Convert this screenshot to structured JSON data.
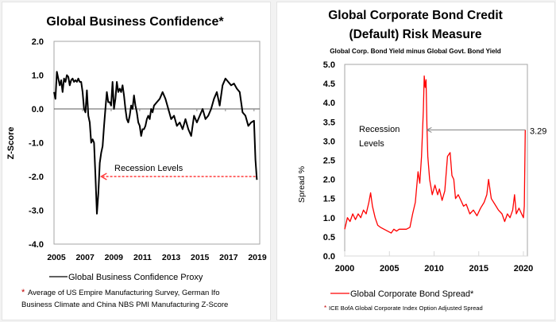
{
  "chart_data": [
    {
      "type": "line",
      "title": "Global Business Confidence*",
      "xlabel": "",
      "ylabel": "Z-Score",
      "xlim": [
        2005,
        2019.4
      ],
      "ylim": [
        -4.0,
        2.0
      ],
      "x_ticks": [
        "2005",
        "2007",
        "2009",
        "2011",
        "2013",
        "2015",
        "2017",
        "2019"
      ],
      "y_ticks": [
        "2.0",
        "1.0",
        "0.0",
        "-1.0",
        "-2.0",
        "-3.0",
        "-4.0"
      ],
      "legend": [
        "Global Business Confidence Proxy"
      ],
      "legend_position": "bottom",
      "line_color": "#000000",
      "annotation": {
        "text": "Recession Levels",
        "arrow_from_x": 2019.1,
        "arrow_to_x": 2008.3,
        "y": -2.0,
        "color": "#ff3b3b"
      },
      "footnote_marker": "*",
      "footnote": "Average of US Empire Manufacturing Survey, German Ifo Business Climate and China NBS PMI Manufacturing  Z-Score",
      "series": [
        {
          "name": "Global Business Confidence Proxy",
          "x": [
            2005.0,
            2005.1,
            2005.2,
            2005.3,
            2005.4,
            2005.5,
            2005.6,
            2005.7,
            2005.8,
            2005.9,
            2006.0,
            2006.1,
            2006.2,
            2006.3,
            2006.4,
            2006.5,
            2006.6,
            2006.7,
            2006.8,
            2006.9,
            2007.0,
            2007.1,
            2007.2,
            2007.3,
            2007.4,
            2007.5,
            2007.6,
            2007.7,
            2007.8,
            2007.9,
            2008.0,
            2008.1,
            2008.2,
            2008.3,
            2008.4,
            2008.5,
            2008.6,
            2008.7,
            2008.8,
            2008.9,
            2009.0,
            2009.1,
            2009.2,
            2009.3,
            2009.4,
            2009.5,
            2009.6,
            2009.7,
            2009.8,
            2009.9,
            2010.0,
            2010.1,
            2010.2,
            2010.3,
            2010.4,
            2010.5,
            2010.6,
            2010.7,
            2010.8,
            2010.9,
            2011.0,
            2011.1,
            2011.2,
            2011.3,
            2011.4,
            2011.5,
            2011.6,
            2011.7,
            2011.8,
            2011.9,
            2012.0,
            2012.2,
            2012.4,
            2012.6,
            2012.8,
            2013.0,
            2013.2,
            2013.4,
            2013.6,
            2013.8,
            2014.0,
            2014.2,
            2014.4,
            2014.6,
            2014.8,
            2015.0,
            2015.2,
            2015.4,
            2015.6,
            2015.8,
            2016.0,
            2016.2,
            2016.4,
            2016.6,
            2016.8,
            2017.0,
            2017.2,
            2017.4,
            2017.6,
            2017.8,
            2018.0,
            2018.2,
            2018.4,
            2018.6,
            2018.8,
            2019.0,
            2019.1,
            2019.2
          ],
          "y": [
            0.5,
            0.3,
            1.1,
            0.9,
            0.7,
            0.85,
            0.5,
            0.9,
            0.8,
            1.0,
            0.95,
            0.7,
            0.85,
            0.9,
            0.8,
            0.85,
            0.8,
            0.9,
            0.8,
            0.8,
            0.5,
            0.0,
            -0.1,
            0.55,
            -0.2,
            -0.4,
            -1.0,
            -0.9,
            -1.0,
            -2.0,
            -3.1,
            -2.5,
            -1.6,
            -1.3,
            -1.1,
            -0.5,
            0.0,
            0.5,
            0.2,
            0.2,
            0.1,
            0.8,
            0.0,
            0.3,
            0.8,
            0.5,
            0.6,
            0.5,
            0.7,
            0.4,
            0.0,
            -0.3,
            -0.4,
            -0.2,
            0.1,
            0.0,
            0.4,
            0.1,
            -0.1,
            -0.4,
            -0.5,
            -0.8,
            -0.6,
            -0.6,
            -0.5,
            -0.3,
            -0.2,
            -0.3,
            0.0,
            -0.1,
            0.1,
            0.2,
            0.3,
            0.5,
            0.3,
            0.0,
            -0.3,
            -0.2,
            -0.5,
            -0.4,
            -0.6,
            -0.3,
            -0.6,
            -0.8,
            -0.2,
            -0.4,
            -0.2,
            0.0,
            -0.3,
            -0.2,
            0.0,
            0.3,
            0.5,
            0.1,
            0.7,
            0.9,
            0.8,
            0.7,
            0.75,
            0.6,
            0.5,
            -0.1,
            -0.2,
            -0.5,
            -0.4,
            -0.35,
            -1.5,
            -2.1
          ]
        }
      ]
    },
    {
      "type": "line",
      "title": "Global Corporate Bond Credit (Default) Risk Measure",
      "title_lines": [
        "Global Corporate Bond Credit",
        "(Default) Risk Measure"
      ],
      "subtitle": "Global Corp. Bond Yield minus Global Govt. Bond Yield",
      "xlabel": "",
      "ylabel": "Spread %",
      "xlim": [
        2000,
        2021
      ],
      "ylim": [
        0.0,
        5.0
      ],
      "x_ticks": [
        "2000",
        "2005",
        "2010",
        "2015",
        "2020"
      ],
      "y_ticks": [
        "5.0",
        "4.5",
        "4.0",
        "3.5",
        "3.0",
        "2.5",
        "2.0",
        "1.5",
        "1.0",
        "0.5",
        "0.0"
      ],
      "legend": [
        "Global Corporate Bond Spread*"
      ],
      "legend_position": "bottom",
      "line_color": "#ff0000",
      "annotation": {
        "text_lines": [
          "Recession",
          "Levels"
        ],
        "value_label": "3.29",
        "y": 3.29,
        "arrow_from_x": 2020.2,
        "arrow_to_x": 2009.1,
        "color": "#7f7f7f"
      },
      "footnote_marker": "*",
      "footnote": "ICE BofA Global Corporate Index Option Adjusted Spread",
      "series": [
        {
          "name": "Global Corporate Bond Spread*",
          "x": [
            2000.0,
            2000.3,
            2000.6,
            2000.9,
            2001.2,
            2001.5,
            2001.8,
            2002.1,
            2002.4,
            2002.7,
            2002.9,
            2003.1,
            2003.4,
            2003.7,
            2004.0,
            2004.4,
            2004.8,
            2005.2,
            2005.5,
            2005.8,
            2006.1,
            2006.5,
            2006.9,
            2007.3,
            2007.6,
            2007.9,
            2008.2,
            2008.4,
            2008.6,
            2008.8,
            2008.9,
            2009.0,
            2009.1,
            2009.2,
            2009.3,
            2009.5,
            2009.8,
            2010.1,
            2010.4,
            2010.6,
            2010.9,
            2011.2,
            2011.5,
            2011.8,
            2012.0,
            2012.2,
            2012.4,
            2012.7,
            2013.0,
            2013.3,
            2013.6,
            2014.0,
            2014.4,
            2014.8,
            2015.2,
            2015.6,
            2015.9,
            2016.1,
            2016.4,
            2016.8,
            2017.2,
            2017.6,
            2017.9,
            2018.2,
            2018.5,
            2018.8,
            2019.0,
            2019.2,
            2019.5,
            2019.8,
            2020.0,
            2020.1,
            2020.2
          ],
          "y": [
            0.7,
            1.0,
            0.9,
            1.1,
            0.95,
            1.1,
            1.0,
            1.2,
            1.1,
            1.4,
            1.65,
            1.3,
            1.0,
            0.8,
            0.75,
            0.7,
            0.65,
            0.6,
            0.7,
            0.65,
            0.7,
            0.7,
            0.7,
            0.75,
            1.1,
            1.4,
            2.2,
            1.9,
            2.6,
            3.8,
            4.7,
            4.4,
            4.6,
            3.4,
            2.6,
            2.0,
            1.6,
            1.85,
            1.6,
            1.75,
            1.45,
            1.7,
            2.6,
            2.7,
            2.1,
            2.0,
            1.5,
            1.6,
            1.45,
            1.3,
            1.35,
            1.1,
            1.2,
            1.05,
            1.25,
            1.4,
            1.6,
            2.0,
            1.5,
            1.35,
            1.2,
            1.1,
            0.9,
            1.1,
            1.0,
            1.2,
            1.6,
            1.1,
            1.25,
            1.1,
            1.0,
            1.3,
            3.29
          ]
        }
      ]
    }
  ]
}
